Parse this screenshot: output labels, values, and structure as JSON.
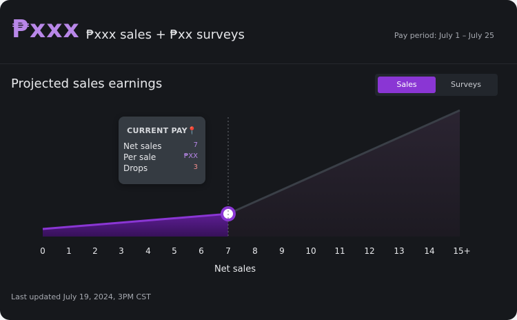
{
  "header": {
    "amount": "₱xxx",
    "subtitle": "₱xxx sales + ₱xx surveys",
    "pay_period": "Pay period: July 1 – July 25"
  },
  "section": {
    "title": "Projected sales earnings"
  },
  "toggle": {
    "sales_label": "Sales",
    "surveys_label": "Surveys",
    "active": "Sales"
  },
  "tooltip": {
    "title": "CURRENT PAY",
    "pin_icon": "📍",
    "rows": [
      {
        "label": "Net sales",
        "value": "7",
        "color": "#b887e8"
      },
      {
        "label": "Per sale",
        "value": "₱XX",
        "color": "#b887e8"
      },
      {
        "label": "Drops",
        "value": "3",
        "color": "#f08c8c"
      }
    ]
  },
  "chart_data": {
    "type": "area",
    "xlabel": "Net sales",
    "ylabel": "",
    "x_ticks": [
      "0",
      "1",
      "2",
      "3",
      "4",
      "5",
      "6",
      "7",
      "8",
      "9",
      "10",
      "11",
      "12",
      "13",
      "14",
      "15+"
    ],
    "current_index": 7,
    "series": [
      {
        "name": "current",
        "x_start": 0,
        "x_end": 7,
        "y_start": 0.06,
        "y_end": 0.18
      },
      {
        "name": "projected",
        "x_start": 7,
        "x_end": 15,
        "y_start": 0.18,
        "y_end": 1.0
      }
    ],
    "ylim": [
      0,
      1
    ],
    "colors": {
      "current": "#8a36d4",
      "projected": "#3a3f47",
      "marker": "#8a36d4"
    }
  },
  "footer": {
    "updated": "Last updated July 19, 2024, 3PM CST"
  }
}
